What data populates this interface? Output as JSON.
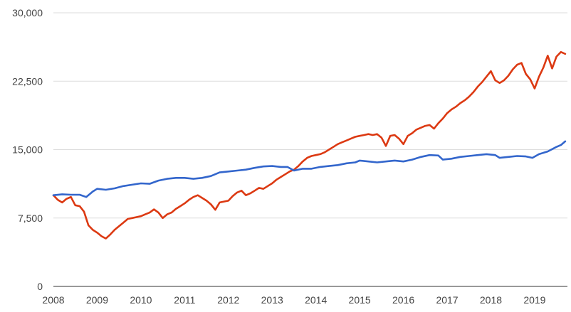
{
  "chart_data": {
    "type": "line",
    "title": "",
    "xlabel": "",
    "ylabel": "",
    "xlim": [
      2008,
      2019.75
    ],
    "ylim": [
      0,
      30000
    ],
    "yticks": [
      {
        "value": 0,
        "label": "0"
      },
      {
        "value": 7500,
        "label": "7,500"
      },
      {
        "value": 15000,
        "label": "15,000"
      },
      {
        "value": 22500,
        "label": "22,500"
      },
      {
        "value": 30000,
        "label": "30,000"
      }
    ],
    "xticks": [
      {
        "value": 2008,
        "label": "2008"
      },
      {
        "value": 2009,
        "label": "2009"
      },
      {
        "value": 2010,
        "label": "2010"
      },
      {
        "value": 2011,
        "label": "2011"
      },
      {
        "value": 2012,
        "label": "2012"
      },
      {
        "value": 2013,
        "label": "2013"
      },
      {
        "value": 2014,
        "label": "2014"
      },
      {
        "value": 2015,
        "label": "2015"
      },
      {
        "value": 2016,
        "label": "2016"
      },
      {
        "value": 2017,
        "label": "2017"
      },
      {
        "value": 2018,
        "label": "2018"
      },
      {
        "value": 2019,
        "label": "2019"
      }
    ],
    "grid": true,
    "legend": "none",
    "series": [
      {
        "color": "#dc3912",
        "points": [
          [
            2008.0,
            10000
          ],
          [
            2008.1,
            9500
          ],
          [
            2008.2,
            9200
          ],
          [
            2008.3,
            9600
          ],
          [
            2008.4,
            9800
          ],
          [
            2008.5,
            8900
          ],
          [
            2008.6,
            8800
          ],
          [
            2008.7,
            8200
          ],
          [
            2008.8,
            6700
          ],
          [
            2008.9,
            6200
          ],
          [
            2009.0,
            5900
          ],
          [
            2009.1,
            5500
          ],
          [
            2009.2,
            5250
          ],
          [
            2009.3,
            5700
          ],
          [
            2009.4,
            6200
          ],
          [
            2009.5,
            6600
          ],
          [
            2009.6,
            7000
          ],
          [
            2009.7,
            7400
          ],
          [
            2009.8,
            7500
          ],
          [
            2009.9,
            7600
          ],
          [
            2010.0,
            7700
          ],
          [
            2010.1,
            7900
          ],
          [
            2010.2,
            8100
          ],
          [
            2010.3,
            8450
          ],
          [
            2010.4,
            8100
          ],
          [
            2010.5,
            7500
          ],
          [
            2010.6,
            7900
          ],
          [
            2010.7,
            8100
          ],
          [
            2010.8,
            8500
          ],
          [
            2010.9,
            8800
          ],
          [
            2011.0,
            9100
          ],
          [
            2011.1,
            9500
          ],
          [
            2011.2,
            9800
          ],
          [
            2011.3,
            10000
          ],
          [
            2011.4,
            9700
          ],
          [
            2011.5,
            9400
          ],
          [
            2011.6,
            9000
          ],
          [
            2011.7,
            8400
          ],
          [
            2011.8,
            9200
          ],
          [
            2011.9,
            9300
          ],
          [
            2012.0,
            9400
          ],
          [
            2012.1,
            9900
          ],
          [
            2012.2,
            10300
          ],
          [
            2012.3,
            10500
          ],
          [
            2012.4,
            10000
          ],
          [
            2012.5,
            10200
          ],
          [
            2012.6,
            10500
          ],
          [
            2012.7,
            10800
          ],
          [
            2012.8,
            10700
          ],
          [
            2012.9,
            11000
          ],
          [
            2013.0,
            11300
          ],
          [
            2013.1,
            11700
          ],
          [
            2013.2,
            12000
          ],
          [
            2013.3,
            12300
          ],
          [
            2013.4,
            12600
          ],
          [
            2013.5,
            12800
          ],
          [
            2013.6,
            13200
          ],
          [
            2013.7,
            13700
          ],
          [
            2013.8,
            14100
          ],
          [
            2013.9,
            14300
          ],
          [
            2014.0,
            14400
          ],
          [
            2014.1,
            14500
          ],
          [
            2014.2,
            14700
          ],
          [
            2014.3,
            15000
          ],
          [
            2014.4,
            15300
          ],
          [
            2014.5,
            15600
          ],
          [
            2014.6,
            15800
          ],
          [
            2014.7,
            16000
          ],
          [
            2014.8,
            16200
          ],
          [
            2014.9,
            16400
          ],
          [
            2015.0,
            16500
          ],
          [
            2015.1,
            16600
          ],
          [
            2015.2,
            16700
          ],
          [
            2015.3,
            16600
          ],
          [
            2015.4,
            16700
          ],
          [
            2015.5,
            16300
          ],
          [
            2015.6,
            15400
          ],
          [
            2015.7,
            16500
          ],
          [
            2015.8,
            16600
          ],
          [
            2015.9,
            16200
          ],
          [
            2016.0,
            15600
          ],
          [
            2016.1,
            16500
          ],
          [
            2016.2,
            16800
          ],
          [
            2016.3,
            17200
          ],
          [
            2016.4,
            17400
          ],
          [
            2016.5,
            17600
          ],
          [
            2016.6,
            17700
          ],
          [
            2016.7,
            17300
          ],
          [
            2016.8,
            17900
          ],
          [
            2016.9,
            18400
          ],
          [
            2017.0,
            19000
          ],
          [
            2017.1,
            19400
          ],
          [
            2017.2,
            19700
          ],
          [
            2017.3,
            20100
          ],
          [
            2017.4,
            20400
          ],
          [
            2017.5,
            20800
          ],
          [
            2017.6,
            21300
          ],
          [
            2017.7,
            21900
          ],
          [
            2017.8,
            22400
          ],
          [
            2017.9,
            23000
          ],
          [
            2018.0,
            23600
          ],
          [
            2018.1,
            22600
          ],
          [
            2018.2,
            22300
          ],
          [
            2018.3,
            22600
          ],
          [
            2018.4,
            23100
          ],
          [
            2018.5,
            23800
          ],
          [
            2018.6,
            24300
          ],
          [
            2018.7,
            24500
          ],
          [
            2018.8,
            23300
          ],
          [
            2018.9,
            22700
          ],
          [
            2019.0,
            21700
          ],
          [
            2019.1,
            23000
          ],
          [
            2019.2,
            24000
          ],
          [
            2019.3,
            25300
          ],
          [
            2019.4,
            23900
          ],
          [
            2019.5,
            25200
          ],
          [
            2019.6,
            25700
          ],
          [
            2019.7,
            25500
          ]
        ]
      },
      {
        "color": "#3366cc",
        "points": [
          [
            2008.0,
            10000
          ],
          [
            2008.2,
            10100
          ],
          [
            2008.4,
            10050
          ],
          [
            2008.6,
            10050
          ],
          [
            2008.75,
            9800
          ],
          [
            2008.9,
            10400
          ],
          [
            2009.0,
            10700
          ],
          [
            2009.2,
            10600
          ],
          [
            2009.4,
            10750
          ],
          [
            2009.6,
            11000
          ],
          [
            2009.8,
            11150
          ],
          [
            2010.0,
            11300
          ],
          [
            2010.2,
            11250
          ],
          [
            2010.4,
            11600
          ],
          [
            2010.6,
            11800
          ],
          [
            2010.8,
            11900
          ],
          [
            2011.0,
            11900
          ],
          [
            2011.2,
            11800
          ],
          [
            2011.4,
            11900
          ],
          [
            2011.6,
            12100
          ],
          [
            2011.8,
            12500
          ],
          [
            2012.0,
            12600
          ],
          [
            2012.2,
            12700
          ],
          [
            2012.4,
            12800
          ],
          [
            2012.6,
            13000
          ],
          [
            2012.8,
            13150
          ],
          [
            2013.0,
            13200
          ],
          [
            2013.2,
            13100
          ],
          [
            2013.35,
            13100
          ],
          [
            2013.5,
            12700
          ],
          [
            2013.7,
            12900
          ],
          [
            2013.9,
            12900
          ],
          [
            2014.1,
            13100
          ],
          [
            2014.3,
            13200
          ],
          [
            2014.5,
            13300
          ],
          [
            2014.7,
            13500
          ],
          [
            2014.9,
            13600
          ],
          [
            2015.0,
            13800
          ],
          [
            2015.2,
            13700
          ],
          [
            2015.4,
            13600
          ],
          [
            2015.6,
            13700
          ],
          [
            2015.8,
            13800
          ],
          [
            2016.0,
            13700
          ],
          [
            2016.2,
            13900
          ],
          [
            2016.4,
            14200
          ],
          [
            2016.6,
            14400
          ],
          [
            2016.8,
            14350
          ],
          [
            2016.9,
            13900
          ],
          [
            2017.1,
            14000
          ],
          [
            2017.3,
            14200
          ],
          [
            2017.5,
            14300
          ],
          [
            2017.7,
            14400
          ],
          [
            2017.9,
            14500
          ],
          [
            2018.1,
            14400
          ],
          [
            2018.2,
            14100
          ],
          [
            2018.4,
            14200
          ],
          [
            2018.6,
            14300
          ],
          [
            2018.8,
            14250
          ],
          [
            2018.95,
            14100
          ],
          [
            2019.1,
            14500
          ],
          [
            2019.3,
            14800
          ],
          [
            2019.5,
            15300
          ],
          [
            2019.6,
            15500
          ],
          [
            2019.7,
            15900
          ]
        ]
      }
    ]
  }
}
